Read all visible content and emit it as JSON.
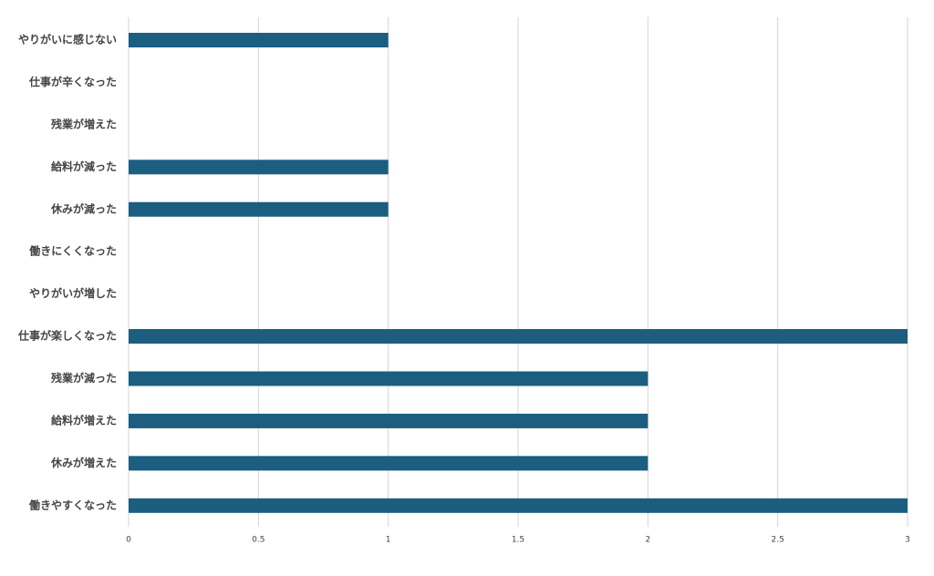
{
  "chart_data": {
    "type": "bar",
    "orientation": "horizontal",
    "categories": [
      "やりがいに感じない",
      "仕事が辛くなった",
      "残業が増えた",
      "給料が減った",
      "休みが減った",
      "働きにくくなった",
      "やりがいが増した",
      "仕事が楽しくなった",
      "残業が減った",
      "給料が増えた",
      "休みが増えた",
      "働きやすくなった"
    ],
    "values": [
      1,
      0,
      0,
      1,
      1,
      0,
      0,
      3,
      2,
      2,
      2,
      3
    ],
    "color": "#1b5e80",
    "xlim": [
      0,
      3
    ],
    "xticks": [
      0,
      0.5,
      1,
      1.5,
      2,
      2.5,
      3
    ],
    "grid": true
  }
}
